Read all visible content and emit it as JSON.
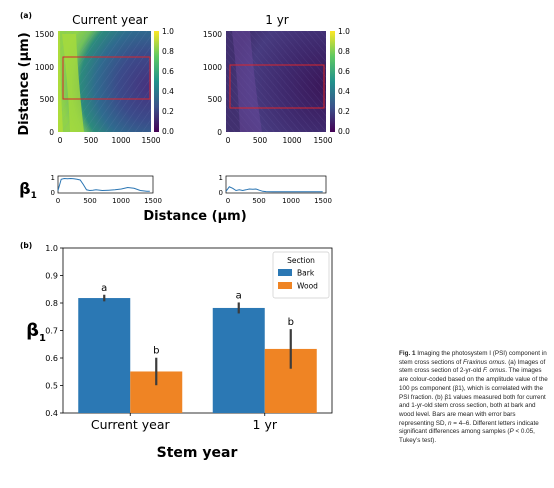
{
  "panel_a": {
    "label": "(a)",
    "images": [
      {
        "title": "Current year"
      },
      {
        "title": "1 yr"
      }
    ],
    "image_ylabel": "Distance (µm)",
    "image_ticks": [
      "0",
      "500",
      "1000",
      "1500"
    ],
    "colorbar_ticks": [
      "0.0",
      "0.2",
      "0.4",
      "0.6",
      "0.8",
      "1.0"
    ],
    "profile_ylabel": "β",
    "profile_ylabel_sub": "1",
    "profile_yticks": [
      "0",
      "1"
    ],
    "profile_xlabel": "Distance (µm)",
    "colors": {
      "colormap": "viridis",
      "roi_box": "#d8262c",
      "profile_line": "#2a75b3"
    }
  },
  "panel_b": {
    "label": "(b)",
    "legend_title": "Section",
    "legend_entries": [
      "Bark",
      "Wood"
    ],
    "xlabel": "Stem year",
    "ylabel": "β",
    "ylabel_sub": "1",
    "colors": {
      "bark": "#2b78b4",
      "wood": "#ef8424"
    }
  },
  "chart_data": [
    {
      "type": "bar",
      "categories": [
        "Current year",
        "1 yr"
      ],
      "series": [
        {
          "name": "Bark",
          "values": [
            0.818,
            0.782
          ],
          "errors": [
            0.012,
            0.02
          ],
          "letters": [
            "a",
            "a"
          ]
        },
        {
          "name": "Wood",
          "values": [
            0.551,
            0.633
          ],
          "errors": [
            0.05,
            0.072
          ],
          "letters": [
            "b",
            "b"
          ]
        }
      ],
      "xlabel": "Stem year",
      "ylabel": "β1",
      "ylim": [
        0.4,
        1.0
      ],
      "yticks": [
        "0.4",
        "0.5",
        "0.6",
        "0.7",
        "0.8",
        "0.9",
        "1.0"
      ],
      "legend_title": "Section",
      "legend_position": "top-right",
      "grid": false
    },
    {
      "type": "line",
      "title": "Current year",
      "x": [
        0,
        50,
        100,
        150,
        200,
        250,
        300,
        350,
        400,
        450,
        500,
        550,
        600,
        700,
        800,
        900,
        1000,
        1100,
        1200,
        1300,
        1400,
        1450
      ],
      "y": [
        0.1,
        0.85,
        0.9,
        0.88,
        0.9,
        0.88,
        0.85,
        0.8,
        0.5,
        0.15,
        0.1,
        0.12,
        0.15,
        0.1,
        0.12,
        0.15,
        0.2,
        0.3,
        0.25,
        0.1,
        0.05,
        0.05
      ],
      "xlabel": "Distance (µm)",
      "ylabel": "β1",
      "xlim": [
        0,
        1500
      ],
      "ylim": [
        0,
        1
      ]
    },
    {
      "type": "line",
      "title": "1 yr",
      "x": [
        0,
        50,
        100,
        150,
        200,
        250,
        300,
        350,
        400,
        450,
        500,
        550,
        600,
        700,
        800,
        900,
        1000,
        1100,
        1200,
        1300,
        1400,
        1450
      ],
      "y": [
        0.05,
        0.35,
        0.25,
        0.1,
        0.15,
        0.1,
        0.15,
        0.2,
        0.18,
        0.2,
        0.12,
        0.05,
        0.03,
        0.02,
        0.02,
        0.02,
        0.02,
        0.02,
        0.02,
        0.02,
        0.02,
        0.02
      ],
      "xlabel": "Distance (µm)",
      "ylabel": "β1",
      "xlim": [
        0,
        1500
      ],
      "ylim": [
        0,
        1
      ]
    }
  ],
  "caption": {
    "fig_label": "Fig. 1",
    "text_1": " Imaging the photosystem I (PSI) component in stem cross sections of ",
    "species_1": "Fraxinus ornus",
    "text_2": ". (a) Images of stem cross section of 2-yr-old ",
    "species_2": "F. ornus",
    "text_3": ". The images are colour-coded based on the amplitude value of the 100 ps component (β1), which is correlated with the PSI fraction. (b) β1 values measured both for current and 1-yr-old stem cross section, both at bark and wood level. Bars are mean with error bars representing SD, ",
    "n_symbol": "n",
    "text_4": " = 4–6. Different letters indicate significant differences among samples (",
    "p_symbol": "P",
    "text_5": " < 0.05, Tukey’s test)."
  }
}
